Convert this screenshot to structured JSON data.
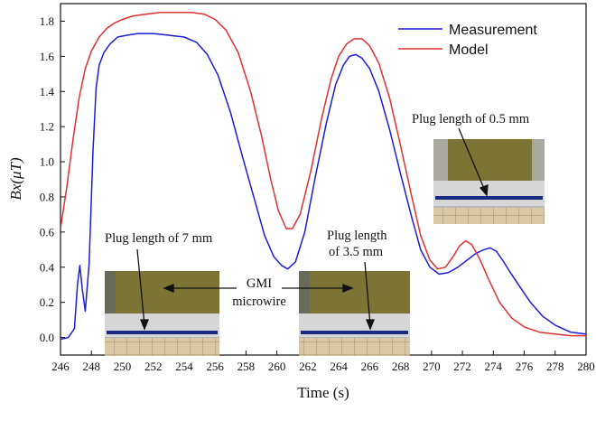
{
  "chart_data": {
    "type": "line",
    "xlabel": "Time (s)",
    "ylabel": "Bx(μT)",
    "xlim": [
      246,
      280
    ],
    "ylim": [
      -0.1,
      1.9
    ],
    "xticks": [
      "246",
      "248",
      "250",
      "252",
      "254",
      "256",
      "258",
      "260",
      "262",
      "264",
      "266",
      "268",
      "270",
      "272",
      "274",
      "276",
      "278",
      "280"
    ],
    "yticks": [
      "0.0",
      "0.2",
      "0.4",
      "0.6",
      "0.8",
      "1.0",
      "1.2",
      "1.4",
      "1.6",
      "1.8"
    ],
    "legend_position": "top-right",
    "series": [
      {
        "name": "Measurement",
        "color": "#1c1cdc",
        "x": [
          246.0,
          246.5,
          246.9,
          247.1,
          247.25,
          247.4,
          247.6,
          247.85,
          248.1,
          248.3,
          248.5,
          248.8,
          249.2,
          249.7,
          250.3,
          251.0,
          252.0,
          253.0,
          254.0,
          254.8,
          255.5,
          256.2,
          257.0,
          257.8,
          258.5,
          259.2,
          259.8,
          260.3,
          260.7,
          261.2,
          261.8,
          262.5,
          263.2,
          263.8,
          264.3,
          264.7,
          265.1,
          265.5,
          266.0,
          266.6,
          267.3,
          268.0,
          268.7,
          269.3,
          269.9,
          270.5,
          271.1,
          271.7,
          272.3,
          272.9,
          273.4,
          273.8,
          274.2,
          274.6,
          275.1,
          275.7,
          276.4,
          277.2,
          278.0,
          279.0,
          280.0
        ],
        "y": [
          -0.01,
          0.0,
          0.05,
          0.3,
          0.41,
          0.28,
          0.15,
          0.42,
          1.05,
          1.42,
          1.55,
          1.62,
          1.67,
          1.71,
          1.72,
          1.73,
          1.73,
          1.72,
          1.71,
          1.68,
          1.61,
          1.49,
          1.28,
          1.02,
          0.8,
          0.58,
          0.46,
          0.41,
          0.39,
          0.43,
          0.6,
          0.92,
          1.22,
          1.44,
          1.55,
          1.6,
          1.61,
          1.59,
          1.53,
          1.4,
          1.18,
          0.93,
          0.69,
          0.5,
          0.4,
          0.36,
          0.37,
          0.4,
          0.44,
          0.48,
          0.5,
          0.51,
          0.49,
          0.44,
          0.37,
          0.29,
          0.2,
          0.12,
          0.07,
          0.03,
          0.02
        ]
      },
      {
        "name": "Model",
        "color": "#e03030",
        "x": [
          246.0,
          246.4,
          246.8,
          247.2,
          247.6,
          248.0,
          248.5,
          249.0,
          249.5,
          250.0,
          250.7,
          251.5,
          252.5,
          253.5,
          254.5,
          255.3,
          256.0,
          256.7,
          257.5,
          258.3,
          259.0,
          259.6,
          260.1,
          260.6,
          261.0,
          261.5,
          262.2,
          262.9,
          263.5,
          264.0,
          264.5,
          265.0,
          265.5,
          266.0,
          266.6,
          267.3,
          268.0,
          268.7,
          269.3,
          269.9,
          270.4,
          270.9,
          271.4,
          271.8,
          272.2,
          272.6,
          273.1,
          273.7,
          274.4,
          275.2,
          276.0,
          277.0,
          278.0,
          279.0,
          280.0
        ],
        "y": [
          0.62,
          0.85,
          1.12,
          1.36,
          1.53,
          1.63,
          1.71,
          1.76,
          1.79,
          1.81,
          1.83,
          1.84,
          1.85,
          1.85,
          1.85,
          1.84,
          1.81,
          1.75,
          1.62,
          1.4,
          1.15,
          0.9,
          0.72,
          0.62,
          0.62,
          0.7,
          0.95,
          1.25,
          1.47,
          1.6,
          1.67,
          1.7,
          1.7,
          1.66,
          1.56,
          1.36,
          1.09,
          0.81,
          0.58,
          0.44,
          0.39,
          0.4,
          0.46,
          0.52,
          0.55,
          0.53,
          0.45,
          0.33,
          0.2,
          0.11,
          0.06,
          0.03,
          0.02,
          0.01,
          0.01
        ]
      }
    ],
    "annotations": {
      "plug_7mm": "Plug length of 7 mm",
      "plug_3_5mm_line1": "Plug length",
      "plug_3_5mm_line2": "of 3.5 mm",
      "gmi_line1": "GMI",
      "gmi_line2": "microwire",
      "plug_0_5mm": "Plug length of 0.5 mm"
    }
  },
  "colors": {
    "axis": "#111111",
    "photo_board": "#8a7f3a",
    "photo_frame": "#c8c8c8",
    "photo_floor": "#d9c9a8",
    "wire": "#1a2a80"
  }
}
